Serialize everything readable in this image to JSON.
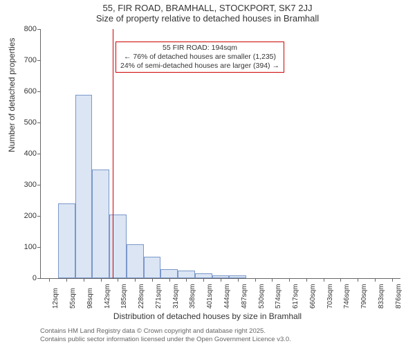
{
  "titles": {
    "line1": "55, FIR ROAD, BRAMHALL, STOCKPORT, SK7 2JJ",
    "line2": "Size of property relative to detached houses in Bramhall"
  },
  "axes": {
    "ylabel": "Number of detached properties",
    "xlabel": "Distribution of detached houses by size in Bramhall"
  },
  "chart": {
    "type": "histogram",
    "ylim": [
      0,
      800
    ],
    "ytick_step": 100,
    "yticks": [
      0,
      100,
      200,
      300,
      400,
      500,
      600,
      700,
      800
    ],
    "categories": [
      "12sqm",
      "55sqm",
      "98sqm",
      "142sqm",
      "185sqm",
      "228sqm",
      "271sqm",
      "314sqm",
      "358sqm",
      "401sqm",
      "444sqm",
      "487sqm",
      "530sqm",
      "574sqm",
      "617sqm",
      "660sqm",
      "703sqm",
      "746sqm",
      "790sqm",
      "833sqm",
      "876sqm"
    ],
    "values": [
      0,
      240,
      590,
      350,
      205,
      110,
      70,
      30,
      25,
      15,
      10,
      10,
      0,
      0,
      0,
      0,
      0,
      0,
      0,
      0,
      0
    ],
    "bar_fill": "#dbe5f4",
    "bar_stroke": "#7a97c9",
    "background": "#ffffff",
    "axis_color": "#666666",
    "bar_width_ratio": 1.0,
    "reference_line": {
      "category_index": 4,
      "fraction_into_bin": 0.2,
      "color": "#cc0000"
    }
  },
  "annotation": {
    "line1": "55 FIR ROAD: 194sqm",
    "line2": "← 76% of detached houses are smaller (1,235)",
    "line3": "24% of semi-detached houses are larger (394) →",
    "border_color": "#cc0000"
  },
  "footer": {
    "line1": "Contains HM Land Registry data © Crown copyright and database right 2025.",
    "line2": "Contains public sector information licensed under the Open Government Licence v3.0."
  }
}
